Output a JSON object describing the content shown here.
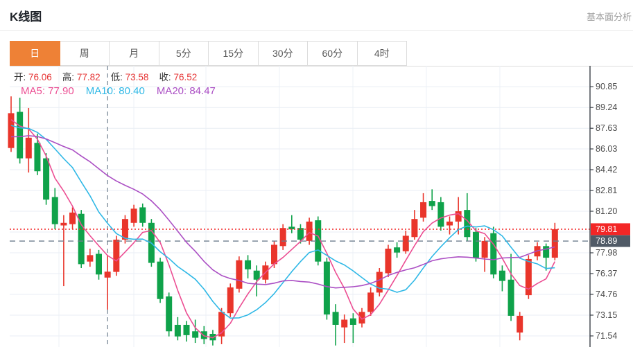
{
  "header": {
    "title": "K线图",
    "link_label": "基本面分析"
  },
  "tabs": {
    "items": [
      "日",
      "周",
      "月",
      "5分",
      "15分",
      "30分",
      "60分",
      "4时"
    ],
    "active_index": 0
  },
  "legend": {
    "ohlc": [
      {
        "label": "开:",
        "value": "76.06"
      },
      {
        "label": "高:",
        "value": "77.82"
      },
      {
        "label": "低:",
        "value": "73.58"
      },
      {
        "label": "收:",
        "value": "76.52"
      }
    ],
    "ma": [
      {
        "label": "MA5:",
        "value": "77.90"
      },
      {
        "label": "MA10:",
        "value": "80.40"
      },
      {
        "label": "MA20:",
        "value": "84.47"
      }
    ]
  },
  "chart_data": {
    "type": "candlestick",
    "title": "K线图 (日K)",
    "y_ticks": [
      90.85,
      89.24,
      87.63,
      86.03,
      84.42,
      82.81,
      81.2,
      77.98,
      76.37,
      74.76,
      73.15,
      71.54
    ],
    "unlabeled_grid_price": 79.59,
    "ylim_visible": [
      70.7,
      92.5
    ],
    "grid": "on",
    "last_price": 79.81,
    "crosshair_price": 78.89,
    "crosshair_index": 11,
    "hovered_candle_ohlc": {
      "open": 76.06,
      "high": 77.82,
      "low": 73.58,
      "close": 76.52
    },
    "ma_values_at_crosshair": {
      "ma5": 77.9,
      "ma10": 80.4,
      "ma20": 84.47
    },
    "ma_periods": [
      5,
      10,
      20
    ],
    "ma_pre_closes": [
      85.0,
      85.2,
      85.4,
      85.6,
      85.8,
      86.0,
      86.2,
      86.4,
      86.6,
      86.8,
      87.0,
      87.2,
      87.3,
      87.4,
      87.5,
      87.6,
      87.8,
      88.0,
      88.3,
      88.6
    ],
    "candles": [
      [
        86.1,
        90.1,
        85.8,
        88.8
      ],
      [
        88.9,
        90.0,
        84.9,
        85.3
      ],
      [
        85.3,
        89.2,
        84.2,
        86.9
      ],
      [
        86.5,
        87.2,
        84.0,
        84.3
      ],
      [
        85.3,
        85.7,
        81.7,
        82.1
      ],
      [
        82.3,
        83.0,
        79.8,
        80.2
      ],
      [
        80.1,
        80.9,
        75.4,
        80.3
      ],
      [
        80.2,
        81.5,
        79.8,
        81.1
      ],
      [
        81.0,
        81.3,
        76.8,
        77.1
      ],
      [
        77.3,
        78.3,
        76.9,
        77.8
      ],
      [
        77.9,
        78.2,
        75.9,
        76.3
      ],
      [
        76.06,
        77.82,
        73.58,
        76.52
      ],
      [
        76.5,
        79.3,
        76.2,
        79.0
      ],
      [
        79.0,
        80.9,
        78.7,
        80.6
      ],
      [
        80.3,
        81.7,
        80.0,
        81.4
      ],
      [
        81.5,
        81.8,
        80.0,
        80.3
      ],
      [
        80.3,
        80.6,
        76.9,
        77.2
      ],
      [
        77.3,
        77.6,
        74.1,
        74.4
      ],
      [
        74.6,
        74.9,
        71.5,
        71.9
      ],
      [
        72.4,
        73.0,
        71.2,
        71.5
      ],
      [
        72.4,
        72.7,
        71.1,
        71.6
      ],
      [
        71.9,
        72.8,
        71.0,
        71.4
      ],
      [
        71.9,
        72.3,
        70.9,
        71.3
      ],
      [
        71.7,
        72.0,
        70.8,
        71.2
      ],
      [
        71.5,
        73.7,
        70.9,
        73.4
      ],
      [
        73.3,
        75.6,
        73.0,
        75.3
      ],
      [
        75.2,
        77.7,
        74.9,
        77.4
      ],
      [
        77.4,
        77.8,
        76.0,
        76.7
      ],
      [
        76.6,
        77.0,
        74.6,
        75.9
      ],
      [
        75.9,
        77.3,
        75.6,
        77.0
      ],
      [
        77.1,
        78.9,
        76.8,
        78.6
      ],
      [
        78.5,
        80.2,
        78.2,
        79.9
      ],
      [
        80.0,
        80.9,
        79.5,
        79.8
      ],
      [
        79.9,
        80.2,
        78.7,
        79.0
      ],
      [
        78.9,
        80.7,
        78.6,
        80.4
      ],
      [
        80.5,
        80.8,
        77.0,
        77.3
      ],
      [
        77.3,
        77.6,
        72.8,
        73.2
      ],
      [
        73.4,
        74.0,
        70.8,
        72.4
      ],
      [
        72.2,
        73.2,
        71.0,
        72.8
      ],
      [
        72.9,
        73.3,
        71.0,
        72.4
      ],
      [
        72.5,
        73.7,
        72.2,
        73.4
      ],
      [
        73.4,
        75.3,
        73.1,
        74.9
      ],
      [
        74.9,
        76.8,
        74.6,
        76.5
      ],
      [
        76.4,
        78.6,
        76.1,
        78.3
      ],
      [
        78.4,
        78.8,
        77.6,
        78.0
      ],
      [
        78.1,
        79.7,
        77.9,
        79.3
      ],
      [
        79.2,
        81.3,
        79.0,
        80.6
      ],
      [
        80.7,
        82.6,
        80.4,
        81.9
      ],
      [
        82.0,
        82.9,
        81.3,
        81.6
      ],
      [
        81.9,
        82.3,
        79.7,
        80.0
      ],
      [
        80.1,
        80.8,
        79.4,
        80.4
      ],
      [
        80.4,
        82.3,
        79.4,
        81.2
      ],
      [
        81.3,
        82.6,
        78.9,
        79.2
      ],
      [
        79.6,
        79.9,
        77.3,
        77.6
      ],
      [
        77.6,
        79.2,
        76.5,
        78.9
      ],
      [
        79.5,
        80.0,
        76.0,
        76.3
      ],
      [
        76.6,
        77.0,
        75.0,
        75.8
      ],
      [
        75.9,
        77.9,
        72.7,
        73.1
      ],
      [
        71.8,
        73.4,
        71.2,
        73.1
      ],
      [
        74.7,
        77.8,
        74.4,
        77.5
      ],
      [
        77.7,
        78.8,
        77.4,
        78.5
      ],
      [
        78.5,
        78.7,
        76.6,
        77.6
      ],
      [
        77.6,
        80.3,
        77.4,
        79.81
      ]
    ]
  },
  "colors": {
    "up": "#e9352b",
    "down": "#0fa24a",
    "ma5": "#ec4d92",
    "ma10": "#2fb8e6",
    "ma20": "#ab4fc4",
    "accent": "#ee8136",
    "last_price_line": "#f42a2a",
    "crosshair": "#6e7e8d",
    "badge_last_bg": "#f32626",
    "badge_cross_bg": "#505a66",
    "grid": "#e9eef4",
    "vgrid": "#edf2f7",
    "axis": "#3a4048",
    "tick_text": "#4a4a4a"
  }
}
